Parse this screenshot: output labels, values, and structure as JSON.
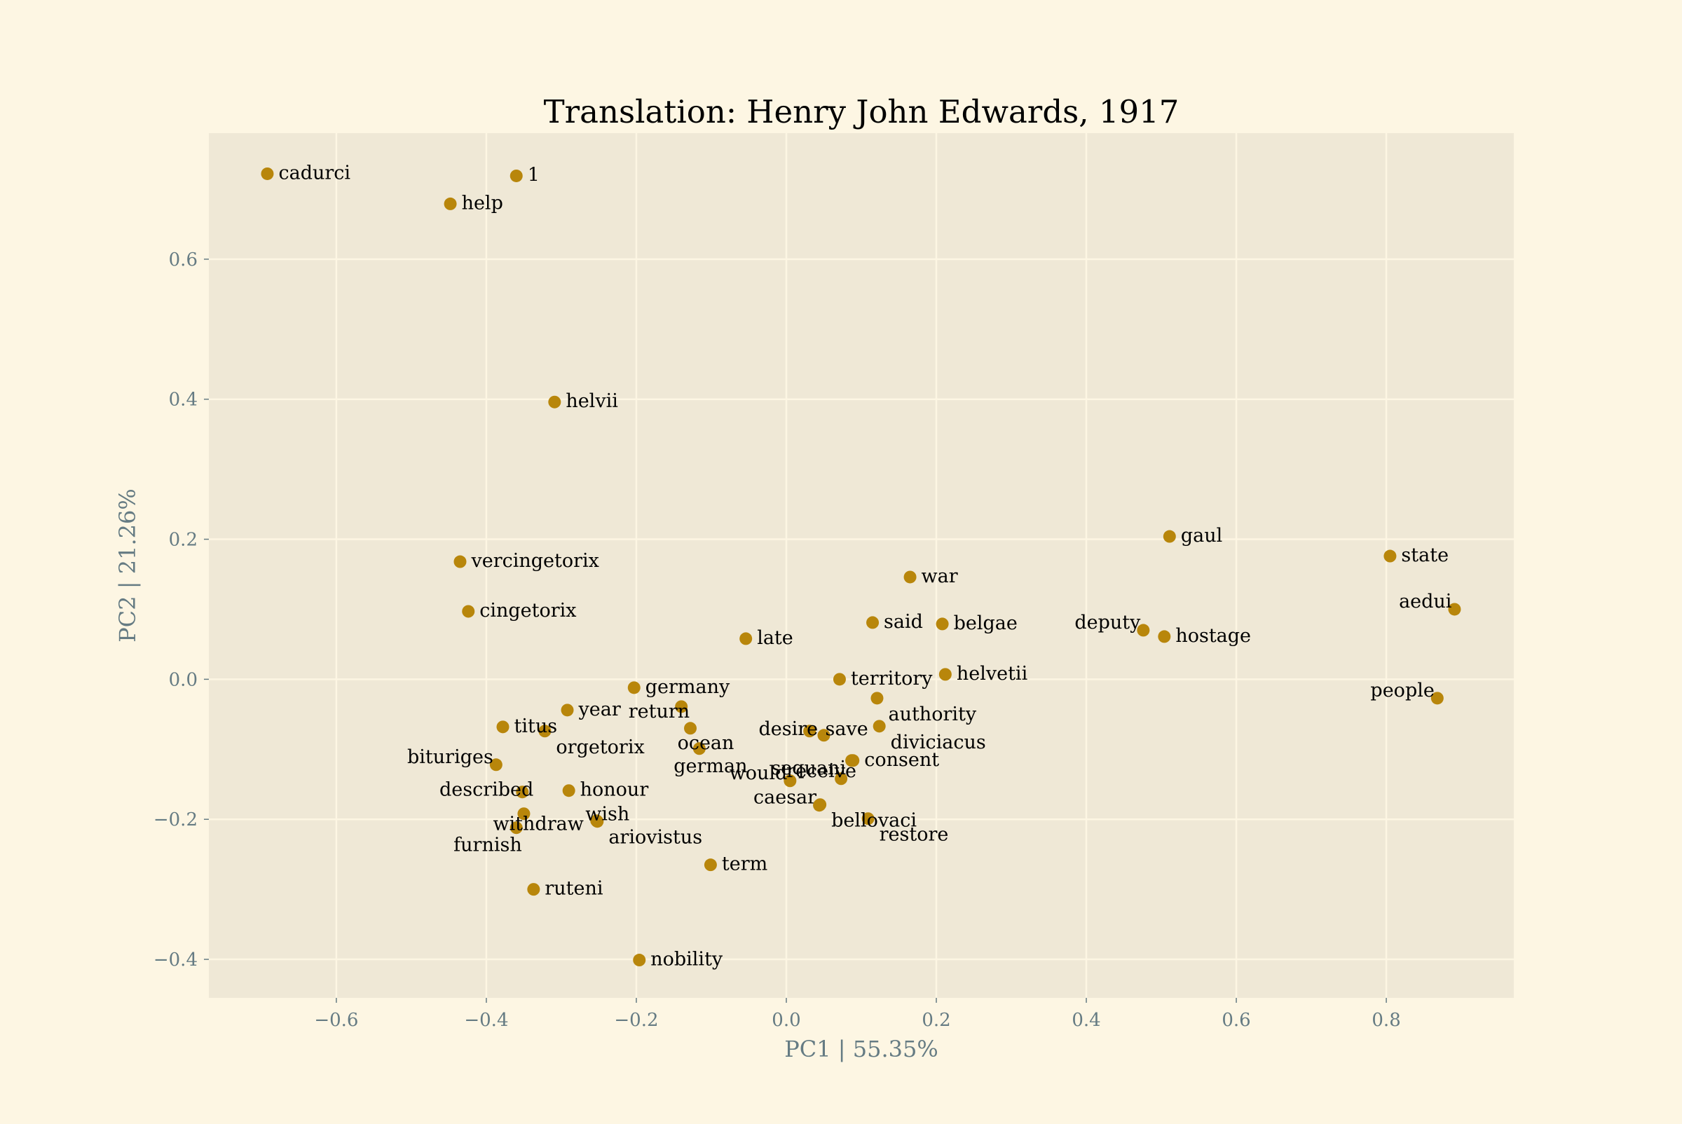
{
  "chart_data": {
    "type": "scatter",
    "title": "Translation: Henry John Edwards, 1917",
    "xlabel": "PC1 | 55.35%",
    "ylabel": "PC2 | 21.26%",
    "xlim": [
      -0.77,
      0.97
    ],
    "ylim": [
      -0.455,
      0.78
    ],
    "xticks": [
      -0.6,
      -0.4,
      -0.2,
      0.0,
      0.2,
      0.4,
      0.6,
      0.8
    ],
    "yticks": [
      -0.4,
      -0.2,
      0.0,
      0.2,
      0.4,
      0.6
    ],
    "grid": true,
    "colors": {
      "figure_background": "#fdf6e3",
      "plot_background": "#efe8d6",
      "grid": "#fdf6e3",
      "marker": "#b8860b",
      "axis_text": "#657b83",
      "label_text": "#000000"
    },
    "points": [
      {
        "label": "cadurci",
        "x": -0.692,
        "y": 0.722
      },
      {
        "label": "1",
        "x": -0.36,
        "y": 0.719
      },
      {
        "label": "help",
        "x": -0.448,
        "y": 0.679
      },
      {
        "label": "helvii",
        "x": -0.309,
        "y": 0.396
      },
      {
        "label": "vercingetorix",
        "x": -0.435,
        "y": 0.168
      },
      {
        "label": "cingetorix",
        "x": -0.424,
        "y": 0.097
      },
      {
        "label": "gaul",
        "x": 0.511,
        "y": 0.204
      },
      {
        "label": "state",
        "x": 0.805,
        "y": 0.176
      },
      {
        "label": "aedui",
        "x": 0.891,
        "y": 0.1
      },
      {
        "label": "war",
        "x": 0.165,
        "y": 0.146
      },
      {
        "label": "said",
        "x": 0.115,
        "y": 0.081
      },
      {
        "label": "belgae",
        "x": 0.208,
        "y": 0.079
      },
      {
        "label": "deputy",
        "x": 0.476,
        "y": 0.07
      },
      {
        "label": "hostage",
        "x": 0.504,
        "y": 0.061
      },
      {
        "label": "late",
        "x": -0.054,
        "y": 0.058
      },
      {
        "label": "territory",
        "x": 0.071,
        "y": 0.0
      },
      {
        "label": "helvetii",
        "x": 0.212,
        "y": 0.007
      },
      {
        "label": "germany",
        "x": -0.203,
        "y": -0.012
      },
      {
        "label": "people",
        "x": 0.868,
        "y": -0.027
      },
      {
        "label": "authority",
        "x": 0.121,
        "y": -0.027
      },
      {
        "label": "return",
        "x": -0.14,
        "y": -0.039
      },
      {
        "label": "year",
        "x": -0.292,
        "y": -0.044
      },
      {
        "label": "titus",
        "x": -0.378,
        "y": -0.068
      },
      {
        "label": "diviciacus",
        "x": 0.124,
        "y": -0.067
      },
      {
        "label": "orgetorix",
        "x": -0.322,
        "y": -0.074
      },
      {
        "label": "desire",
        "x": 0.031,
        "y": -0.074
      },
      {
        "label": "save",
        "x": 0.05,
        "y": -0.08
      },
      {
        "label": "ocean",
        "x": -0.128,
        "y": -0.07
      },
      {
        "label": "german",
        "x": -0.116,
        "y": -0.099
      },
      {
        "label": "bituriges",
        "x": -0.387,
        "y": -0.122
      },
      {
        "label": "sequani",
        "x": 0.087,
        "y": -0.116
      },
      {
        "label": "consent",
        "x": 0.089,
        "y": -0.116
      },
      {
        "label": "receive",
        "x": 0.073,
        "y": -0.142
      },
      {
        "label": "would",
        "x": 0.005,
        "y": -0.145
      },
      {
        "label": "honour",
        "x": -0.29,
        "y": -0.159
      },
      {
        "label": "described",
        "x": -0.352,
        "y": -0.161
      },
      {
        "label": "bellovaci",
        "x": 0.045,
        "y": -0.179
      },
      {
        "label": "withdraw",
        "x": -0.35,
        "y": -0.192
      },
      {
        "label": "wish",
        "x": -0.253,
        "y": -0.202
      },
      {
        "label": "ariovistus",
        "x": -0.252,
        "y": -0.203
      },
      {
        "label": "caesar",
        "x": 0.044,
        "y": -0.18
      },
      {
        "label": "restore",
        "x": 0.109,
        "y": -0.199
      },
      {
        "label": "furnish",
        "x": -0.36,
        "y": -0.212
      },
      {
        "label": "term",
        "x": -0.101,
        "y": -0.265
      },
      {
        "label": "ruteni",
        "x": -0.337,
        "y": -0.3
      },
      {
        "label": "nobility",
        "x": -0.196,
        "y": -0.401
      }
    ]
  }
}
